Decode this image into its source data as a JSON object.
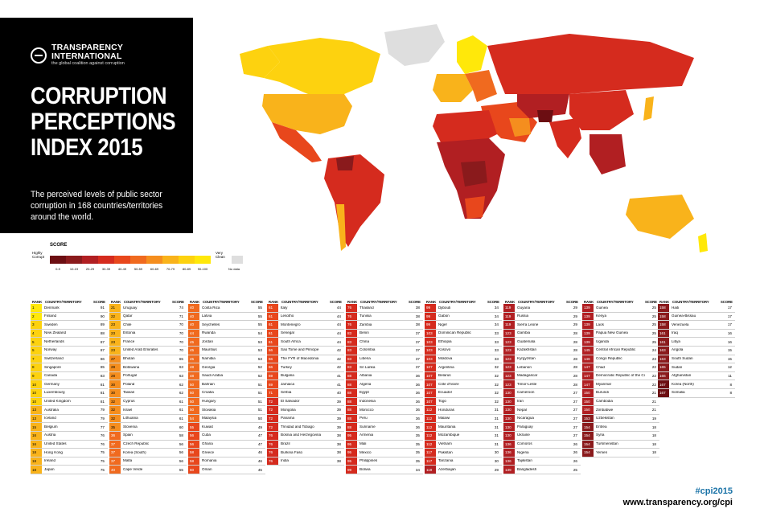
{
  "brand": {
    "name_line1": "TRANSPARENCY",
    "name_line2": "INTERNATIONAL",
    "tagline": "the global coalition against corruption"
  },
  "title_lines": [
    "CORRUPTION",
    "PERCEPTIONS",
    "INDEX 2015"
  ],
  "subtitle": "The perceived levels of public sector corruption in 168 countries/territories around the world.",
  "legend": {
    "title": "SCORE",
    "low_label_line1": "Highly",
    "low_label_line2": "Corrupt",
    "high_label_line1": "Very",
    "high_label_line2": "Clean",
    "bins": [
      {
        "label": "0-9",
        "color": "#6c0e12"
      },
      {
        "label": "10-19",
        "color": "#8a1a1c"
      },
      {
        "label": "20-29",
        "color": "#b11f22"
      },
      {
        "label": "30-39",
        "color": "#d52b1e"
      },
      {
        "label": "40-49",
        "color": "#e8471c"
      },
      {
        "label": "50-59",
        "color": "#f06a1f"
      },
      {
        "label": "60-69",
        "color": "#f58e1e"
      },
      {
        "label": "70-79",
        "color": "#f9b31b"
      },
      {
        "label": "80-89",
        "color": "#fdd20f"
      },
      {
        "label": "90-100",
        "color": "#ffe80a"
      }
    ],
    "nodata_label": "No data"
  },
  "table_headers": {
    "rank": "RANK",
    "country": "COUNTRY/TERRITORY",
    "score": "SCORE"
  },
  "columns": [
    [
      [
        "1",
        "Denmark",
        "91"
      ],
      [
        "2",
        "Finland",
        "90"
      ],
      [
        "3",
        "Sweden",
        "89"
      ],
      [
        "4",
        "New Zealand",
        "88"
      ],
      [
        "5",
        "Netherlands",
        "87"
      ],
      [
        "5",
        "Norway",
        "87"
      ],
      [
        "7",
        "Switzerland",
        "86"
      ],
      [
        "8",
        "Singapore",
        "85"
      ],
      [
        "9",
        "Canada",
        "83"
      ],
      [
        "10",
        "Germany",
        "81"
      ],
      [
        "10",
        "Luxembourg",
        "81"
      ],
      [
        "10",
        "United Kingdom",
        "81"
      ],
      [
        "13",
        "Australia",
        "79"
      ],
      [
        "13",
        "Iceland",
        "79"
      ],
      [
        "15",
        "Belgium",
        "77"
      ],
      [
        "16",
        "Austria",
        "76"
      ],
      [
        "16",
        "United States",
        "76"
      ],
      [
        "18",
        "Hong Kong",
        "75"
      ],
      [
        "18",
        "Ireland",
        "75"
      ],
      [
        "18",
        "Japan",
        "75"
      ]
    ],
    [
      [
        "21",
        "Uruguay",
        "74"
      ],
      [
        "22",
        "Qatar",
        "71"
      ],
      [
        "23",
        "Chile",
        "70"
      ],
      [
        "23",
        "Estonia",
        "70"
      ],
      [
        "23",
        "France",
        "70"
      ],
      [
        "23",
        "United Arab Emirates",
        "70"
      ],
      [
        "27",
        "Bhutan",
        "65"
      ],
      [
        "28",
        "Botswana",
        "63"
      ],
      [
        "28",
        "Portugal",
        "63"
      ],
      [
        "30",
        "Poland",
        "62"
      ],
      [
        "30",
        "Taiwan",
        "62"
      ],
      [
        "32",
        "Cyprus",
        "61"
      ],
      [
        "32",
        "Israel",
        "61"
      ],
      [
        "32",
        "Lithuania",
        "61"
      ],
      [
        "35",
        "Slovenia",
        "60"
      ],
      [
        "36",
        "Spain",
        "58"
      ],
      [
        "37",
        "Czech Republic",
        "56"
      ],
      [
        "37",
        "Korea (South)",
        "56"
      ],
      [
        "37",
        "Malta",
        "56"
      ],
      [
        "40",
        "Cape Verde",
        "55"
      ]
    ],
    [
      [
        "40",
        "Costa Rica",
        "55"
      ],
      [
        "40",
        "Latvia",
        "55"
      ],
      [
        "40",
        "Seychelles",
        "55"
      ],
      [
        "44",
        "Rwanda",
        "54"
      ],
      [
        "45",
        "Jordan",
        "53"
      ],
      [
        "45",
        "Mauritius",
        "53"
      ],
      [
        "45",
        "Namibia",
        "53"
      ],
      [
        "48",
        "Georgia",
        "52"
      ],
      [
        "48",
        "Saudi Arabia",
        "52"
      ],
      [
        "50",
        "Bahrain",
        "51"
      ],
      [
        "50",
        "Croatia",
        "51"
      ],
      [
        "50",
        "Hungary",
        "51"
      ],
      [
        "50",
        "Slovakia",
        "51"
      ],
      [
        "54",
        "Malaysia",
        "50"
      ],
      [
        "55",
        "Kuwait",
        "49"
      ],
      [
        "56",
        "Cuba",
        "47"
      ],
      [
        "56",
        "Ghana",
        "47"
      ],
      [
        "58",
        "Greece",
        "46"
      ],
      [
        "58",
        "Romania",
        "46"
      ],
      [
        "60",
        "Oman",
        "45"
      ]
    ],
    [
      [
        "61",
        "Italy",
        "44"
      ],
      [
        "61",
        "Lesotho",
        "44"
      ],
      [
        "61",
        "Montenegro",
        "44"
      ],
      [
        "61",
        "Senegal",
        "44"
      ],
      [
        "61",
        "South Africa",
        "44"
      ],
      [
        "66",
        "Sao Tome and Principe",
        "42"
      ],
      [
        "66",
        "The FYR of Macedonia",
        "42"
      ],
      [
        "66",
        "Turkey",
        "42"
      ],
      [
        "69",
        "Bulgaria",
        "41"
      ],
      [
        "69",
        "Jamaica",
        "41"
      ],
      [
        "71",
        "Serbia",
        "40"
      ],
      [
        "72",
        "El Salvador",
        "39"
      ],
      [
        "72",
        "Mongolia",
        "39"
      ],
      [
        "72",
        "Panama",
        "39"
      ],
      [
        "72",
        "Trinidad and Tobago",
        "39"
      ],
      [
        "76",
        "Bosnia and Herzegovina",
        "38"
      ],
      [
        "76",
        "Brazil",
        "38"
      ],
      [
        "76",
        "Burkina Faso",
        "38"
      ],
      [
        "76",
        "India",
        "38"
      ]
    ],
    [
      [
        "76",
        "Thailand",
        "38"
      ],
      [
        "76",
        "Tunisia",
        "38"
      ],
      [
        "76",
        "Zambia",
        "38"
      ],
      [
        "83",
        "Benin",
        "37"
      ],
      [
        "83",
        "China",
        "37"
      ],
      [
        "83",
        "Colombia",
        "37"
      ],
      [
        "83",
        "Liberia",
        "37"
      ],
      [
        "83",
        "Sri Lanka",
        "37"
      ],
      [
        "88",
        "Albania",
        "36"
      ],
      [
        "88",
        "Algeria",
        "36"
      ],
      [
        "88",
        "Egypt",
        "36"
      ],
      [
        "88",
        "Indonesia",
        "36"
      ],
      [
        "88",
        "Morocco",
        "36"
      ],
      [
        "88",
        "Peru",
        "36"
      ],
      [
        "88",
        "Suriname",
        "36"
      ],
      [
        "95",
        "Armenia",
        "35"
      ],
      [
        "95",
        "Mali",
        "35"
      ],
      [
        "95",
        "Mexico",
        "35"
      ],
      [
        "95",
        "Philippines",
        "35"
      ],
      [
        "99",
        "Bolivia",
        "34"
      ]
    ],
    [
      [
        "99",
        "Djibouti",
        "34"
      ],
      [
        "99",
        "Gabon",
        "34"
      ],
      [
        "99",
        "Niger",
        "34"
      ],
      [
        "103",
        "Dominican Republic",
        "33"
      ],
      [
        "103",
        "Ethiopia",
        "33"
      ],
      [
        "103",
        "Kosovo",
        "33"
      ],
      [
        "103",
        "Moldova",
        "33"
      ],
      [
        "107",
        "Argentina",
        "32"
      ],
      [
        "107",
        "Belarus",
        "32"
      ],
      [
        "107",
        "Côte d'Ivoire",
        "32"
      ],
      [
        "107",
        "Ecuador",
        "32"
      ],
      [
        "107",
        "Togo",
        "32"
      ],
      [
        "112",
        "Honduras",
        "31"
      ],
      [
        "112",
        "Malawi",
        "31"
      ],
      [
        "112",
        "Mauritania",
        "31"
      ],
      [
        "112",
        "Mozambique",
        "31"
      ],
      [
        "112",
        "Vietnam",
        "31"
      ],
      [
        "117",
        "Pakistan",
        "30"
      ],
      [
        "117",
        "Tanzania",
        "30"
      ],
      [
        "119",
        "Azerbaijan",
        "29"
      ]
    ],
    [
      [
        "119",
        "Guyana",
        "29"
      ],
      [
        "119",
        "Russia",
        "29"
      ],
      [
        "119",
        "Sierra Leone",
        "29"
      ],
      [
        "123",
        "Gambia",
        "28"
      ],
      [
        "123",
        "Guatemala",
        "28"
      ],
      [
        "123",
        "Kazakhstan",
        "28"
      ],
      [
        "123",
        "Kyrgyzstan",
        "28"
      ],
      [
        "123",
        "Lebanon",
        "28"
      ],
      [
        "123",
        "Madagascar",
        "28"
      ],
      [
        "123",
        "Timor-Leste",
        "28"
      ],
      [
        "130",
        "Cameroon",
        "27"
      ],
      [
        "130",
        "Iran",
        "27"
      ],
      [
        "130",
        "Nepal",
        "27"
      ],
      [
        "130",
        "Nicaragua",
        "27"
      ],
      [
        "130",
        "Paraguay",
        "27"
      ],
      [
        "130",
        "Ukraine",
        "27"
      ],
      [
        "136",
        "Comoros",
        "26"
      ],
      [
        "136",
        "Nigeria",
        "26"
      ],
      [
        "136",
        "Tajikistan",
        "26"
      ],
      [
        "139",
        "Bangladesh",
        "25"
      ]
    ],
    [
      [
        "139",
        "Guinea",
        "25"
      ],
      [
        "139",
        "Kenya",
        "25"
      ],
      [
        "139",
        "Laos",
        "25"
      ],
      [
        "139",
        "Papua New Guinea",
        "25"
      ],
      [
        "139",
        "Uganda",
        "25"
      ],
      [
        "145",
        "Central African Republic",
        "24"
      ],
      [
        "146",
        "Congo Republic",
        "23"
      ],
      [
        "147",
        "Chad",
        "22"
      ],
      [
        "147",
        "Democratic Republic of the Congo",
        "22"
      ],
      [
        "147",
        "Myanmar",
        "22"
      ],
      [
        "150",
        "Burundi",
        "21"
      ],
      [
        "150",
        "Cambodia",
        "21"
      ],
      [
        "150",
        "Zimbabwe",
        "21"
      ],
      [
        "153",
        "Uzbekistan",
        "19"
      ],
      [
        "154",
        "Eritrea",
        "18"
      ],
      [
        "154",
        "Syria",
        "18"
      ],
      [
        "154",
        "Turkmenistan",
        "18"
      ],
      [
        "154",
        "Yemen",
        "18"
      ]
    ],
    [
      [
        "158",
        "Haiti",
        "17"
      ],
      [
        "158",
        "Guinea-Bissau",
        "17"
      ],
      [
        "158",
        "Venezuela",
        "17"
      ],
      [
        "161",
        "Iraq",
        "16"
      ],
      [
        "161",
        "Libya",
        "16"
      ],
      [
        "163",
        "Angola",
        "15"
      ],
      [
        "163",
        "South Sudan",
        "15"
      ],
      [
        "165",
        "Sudan",
        "12"
      ],
      [
        "166",
        "Afghanistan",
        "11"
      ],
      [
        "167",
        "Korea (North)",
        "8"
      ],
      [
        "167",
        "Somalia",
        "8"
      ]
    ]
  ],
  "footer": {
    "hashtag": "#cpi2015",
    "website": "www.transparency.org/cpi"
  }
}
